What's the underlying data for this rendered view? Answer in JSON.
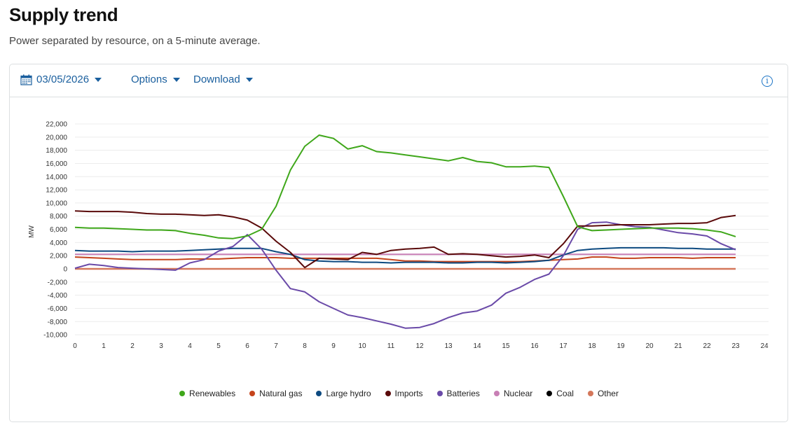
{
  "header": {
    "title": "Supply trend",
    "subtitle": "Power separated by resource, on a 5-minute average."
  },
  "toolbar": {
    "date": "03/05/2026",
    "options_label": "Options",
    "download_label": "Download",
    "info_glyph": "i"
  },
  "chart_data": {
    "type": "line",
    "title": "",
    "xlabel": "",
    "ylabel": "MW",
    "xlim": [
      0,
      24
    ],
    "ylim": [
      -10000,
      22000
    ],
    "x_ticks": [
      "0",
      "1",
      "2",
      "3",
      "4",
      "5",
      "6",
      "7",
      "8",
      "9",
      "10",
      "11",
      "12",
      "13",
      "14",
      "15",
      "16",
      "17",
      "18",
      "19",
      "20",
      "21",
      "22",
      "23",
      "24"
    ],
    "y_ticks": [
      "22,000",
      "20,000",
      "18,000",
      "16,000",
      "14,000",
      "12,000",
      "10,000",
      "8,000",
      "6,000",
      "4,000",
      "2,000",
      "0",
      "-2,000",
      "-4,000",
      "-6,000",
      "-8,000",
      "-10,000"
    ],
    "y_tick_values": [
      22000,
      20000,
      18000,
      16000,
      14000,
      12000,
      10000,
      8000,
      6000,
      4000,
      2000,
      0,
      -2000,
      -4000,
      -6000,
      -8000,
      -10000
    ],
    "grid": true,
    "legend_position": "bottom",
    "x": [
      0,
      0.5,
      1,
      1.5,
      2,
      2.5,
      3,
      3.5,
      4,
      4.5,
      5,
      5.5,
      6,
      6.5,
      7,
      7.5,
      8,
      8.5,
      9,
      9.5,
      10,
      10.5,
      11,
      11.5,
      12,
      12.5,
      13,
      13.5,
      14,
      14.5,
      15,
      15.5,
      16,
      16.5,
      17,
      17.5,
      18,
      18.5,
      19,
      19.5,
      20,
      20.5,
      21,
      21.5,
      22,
      22.5,
      23
    ],
    "series": [
      {
        "name": "Renewables",
        "color": "#3fa71a",
        "values": [
          6300,
          6200,
          6200,
          6100,
          6000,
          5900,
          5900,
          5800,
          5400,
          5100,
          4700,
          4600,
          5000,
          6000,
          9500,
          15000,
          18600,
          20300,
          19800,
          18200,
          18700,
          17800,
          17600,
          17300,
          17000,
          16700,
          16400,
          16900,
          16300,
          16100,
          15500,
          15500,
          15600,
          15400,
          11000,
          6400,
          5800,
          5900,
          6000,
          6100,
          6200,
          6200,
          6200,
          6100,
          5900,
          5600,
          4900
        ]
      },
      {
        "name": "Natural gas",
        "color": "#c5441c",
        "values": [
          1800,
          1700,
          1600,
          1500,
          1400,
          1400,
          1400,
          1400,
          1500,
          1500,
          1500,
          1600,
          1700,
          1700,
          1700,
          1600,
          1600,
          1600,
          1600,
          1600,
          1600,
          1600,
          1400,
          1200,
          1200,
          1100,
          1100,
          1100,
          1100,
          1100,
          1100,
          1100,
          1200,
          1300,
          1400,
          1500,
          1800,
          1800,
          1600,
          1600,
          1700,
          1700,
          1700,
          1600,
          1700,
          1700,
          1700
        ]
      },
      {
        "name": "Large hydro",
        "color": "#0d4a80",
        "values": [
          2800,
          2700,
          2700,
          2700,
          2600,
          2700,
          2700,
          2700,
          2800,
          2900,
          3000,
          3100,
          3100,
          3100,
          2600,
          2200,
          1400,
          1200,
          1100,
          1100,
          1000,
          1000,
          900,
          1000,
          1000,
          1000,
          900,
          900,
          1000,
          1000,
          900,
          1000,
          1100,
          1300,
          2100,
          2800,
          3000,
          3100,
          3200,
          3200,
          3200,
          3200,
          3100,
          3100,
          3000,
          3000,
          3000
        ]
      },
      {
        "name": "Imports",
        "color": "#5a0a0a",
        "values": [
          8800,
          8700,
          8700,
          8700,
          8600,
          8400,
          8300,
          8300,
          8200,
          8100,
          8200,
          7900,
          7400,
          6200,
          4200,
          2500,
          200,
          1600,
          1500,
          1400,
          2500,
          2200,
          2800,
          3000,
          3100,
          3300,
          2200,
          2300,
          2200,
          2000,
          1800,
          1900,
          2100,
          1700,
          3800,
          6500,
          6500,
          6600,
          6700,
          6700,
          6700,
          6800,
          6900,
          6900,
          7000,
          7800,
          8100
        ]
      },
      {
        "name": "Batteries",
        "color": "#6a4aa8",
        "values": [
          100,
          700,
          500,
          200,
          100,
          0,
          -100,
          -200,
          900,
          1400,
          2700,
          3400,
          5200,
          3000,
          -200,
          -3000,
          -3500,
          -5000,
          -6000,
          -7000,
          -7400,
          -7900,
          -8400,
          -9000,
          -8900,
          -8300,
          -7400,
          -6700,
          -6400,
          -5500,
          -3700,
          -2800,
          -1600,
          -800,
          2000,
          6000,
          7000,
          7100,
          6700,
          6400,
          6300,
          5900,
          5500,
          5300,
          5000,
          3800,
          2900
        ]
      },
      {
        "name": "Nuclear",
        "color": "#c87fb5",
        "values": [
          2200,
          2200,
          2200,
          2200,
          2200,
          2200,
          2200,
          2200,
          2200,
          2200,
          2200,
          2200,
          2200,
          2200,
          2200,
          2200,
          2200,
          2200,
          2200,
          2200,
          2200,
          2200,
          2200,
          2200,
          2200,
          2200,
          2200,
          2200,
          2200,
          2200,
          2200,
          2200,
          2200,
          2200,
          2200,
          2200,
          2200,
          2200,
          2200,
          2200,
          2200,
          2200,
          2200,
          2200,
          2200,
          2200,
          2200
        ]
      },
      {
        "name": "Coal",
        "color": "#000000",
        "values": [
          0,
          0,
          0,
          0,
          0,
          0,
          0,
          0,
          0,
          0,
          0,
          0,
          0,
          0,
          0,
          0,
          0,
          0,
          0,
          0,
          0,
          0,
          0,
          0,
          0,
          0,
          0,
          0,
          0,
          0,
          0,
          0,
          0,
          0,
          0,
          0,
          0,
          0,
          0,
          0,
          0,
          0,
          0,
          0,
          0,
          0,
          0
        ]
      },
      {
        "name": "Other",
        "color": "#d4775a",
        "values": [
          0,
          0,
          0,
          0,
          0,
          0,
          0,
          0,
          0,
          0,
          0,
          0,
          0,
          0,
          0,
          0,
          0,
          0,
          0,
          0,
          0,
          0,
          0,
          0,
          0,
          0,
          0,
          0,
          0,
          0,
          0,
          0,
          0,
          0,
          0,
          0,
          0,
          0,
          0,
          0,
          0,
          0,
          0,
          0,
          0,
          0,
          0
        ]
      }
    ]
  }
}
